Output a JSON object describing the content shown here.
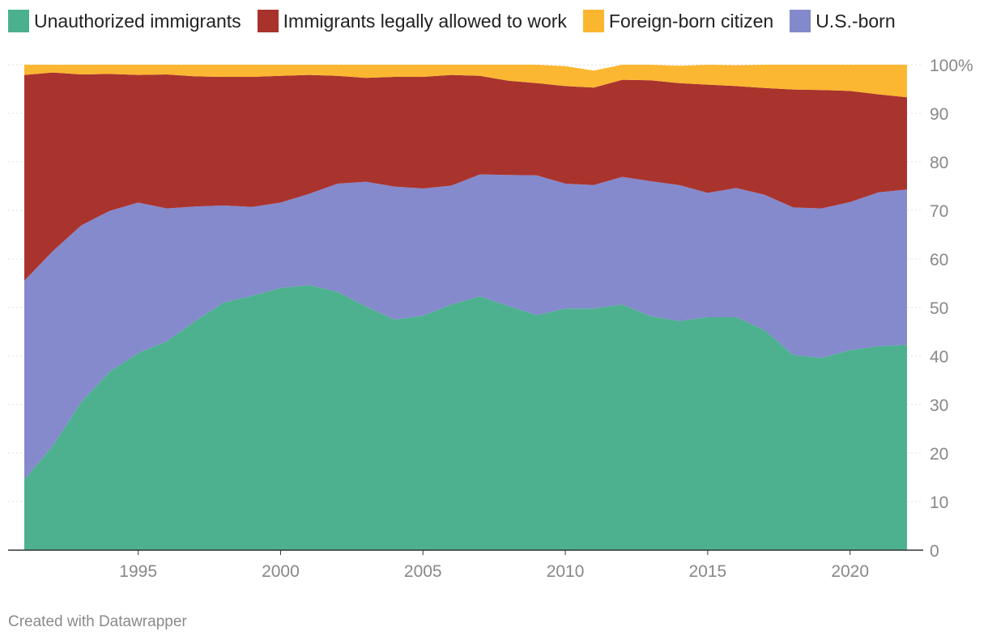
{
  "legend": [
    {
      "label": "Unauthorized immigrants",
      "color": "#4bb08e"
    },
    {
      "label": "Immigrants legally allowed to work",
      "color": "#a8322c"
    },
    {
      "label": "Foreign-born citizen",
      "color": "#fbb62f"
    },
    {
      "label": "U.S.-born",
      "color": "#8489cb"
    }
  ],
  "credit": "Created with Datawrapper",
  "chart_data": {
    "type": "area",
    "stacked": true,
    "x": [
      1991,
      1992,
      1993,
      1994,
      1995,
      1996,
      1997,
      1998,
      1999,
      2000,
      2001,
      2002,
      2003,
      2004,
      2005,
      2006,
      2007,
      2008,
      2009,
      2010,
      2011,
      2012,
      2013,
      2014,
      2015,
      2016,
      2017,
      2018,
      2019,
      2020,
      2021,
      2022
    ],
    "xlim": [
      1991,
      2022
    ],
    "ylim": [
      0,
      100
    ],
    "x_ticks": [
      1995,
      2000,
      2005,
      2010,
      2015,
      2020
    ],
    "y_ticks": [
      0,
      10,
      20,
      30,
      40,
      50,
      60,
      70,
      80,
      90,
      100
    ],
    "y_tick_labels": [
      "0",
      "10",
      "20",
      "30",
      "40",
      "50",
      "60",
      "70",
      "80",
      "90",
      "100%"
    ],
    "series": [
      {
        "name": "Unauthorized immigrants",
        "color": "#4bb08e",
        "values": [
          14.5,
          21.5,
          30.5,
          36.8,
          40.6,
          43.0,
          47.2,
          51.0,
          52.4,
          54.0,
          54.6,
          53.2,
          50.2,
          47.5,
          48.3,
          50.6,
          52.3,
          50.3,
          48.4,
          49.8,
          49.8,
          50.6,
          48.2,
          47.2,
          48.0,
          48.0,
          45.3,
          40.2,
          39.6,
          41.2,
          42.0,
          42.3
        ]
      },
      {
        "name": "U.S.-born",
        "color": "#8489cb",
        "values": [
          41.0,
          40.1,
          36.4,
          33.1,
          31.0,
          27.4,
          23.6,
          20.0,
          18.3,
          17.6,
          18.8,
          22.3,
          25.7,
          27.4,
          26.2,
          24.5,
          25.1,
          27.0,
          28.8,
          25.7,
          25.4,
          26.3,
          27.8,
          28.0,
          25.6,
          26.6,
          27.9,
          30.4,
          30.8,
          30.5,
          31.7,
          32.0
        ]
      },
      {
        "name": "Immigrants legally allowed to work",
        "color": "#a8322c",
        "values": [
          42.4,
          36.8,
          31.1,
          28.2,
          26.3,
          27.6,
          26.8,
          26.5,
          26.8,
          26.1,
          24.5,
          22.2,
          21.4,
          22.6,
          23.0,
          22.8,
          20.3,
          19.4,
          19.0,
          20.1,
          20.1,
          20.0,
          20.8,
          21.0,
          22.3,
          21.0,
          22.0,
          24.3,
          24.4,
          22.9,
          20.2,
          19.0
        ]
      },
      {
        "name": "Foreign-born citizen",
        "color": "#fbb62f",
        "values": [
          2.1,
          1.6,
          2.0,
          1.9,
          2.1,
          2.0,
          2.4,
          2.5,
          2.5,
          2.3,
          2.1,
          2.3,
          2.7,
          2.5,
          2.5,
          2.1,
          2.3,
          3.3,
          3.8,
          4.1,
          3.5,
          3.1,
          3.2,
          3.6,
          4.1,
          4.3,
          4.8,
          5.1,
          5.2,
          5.4,
          6.1,
          6.7
        ]
      }
    ]
  }
}
